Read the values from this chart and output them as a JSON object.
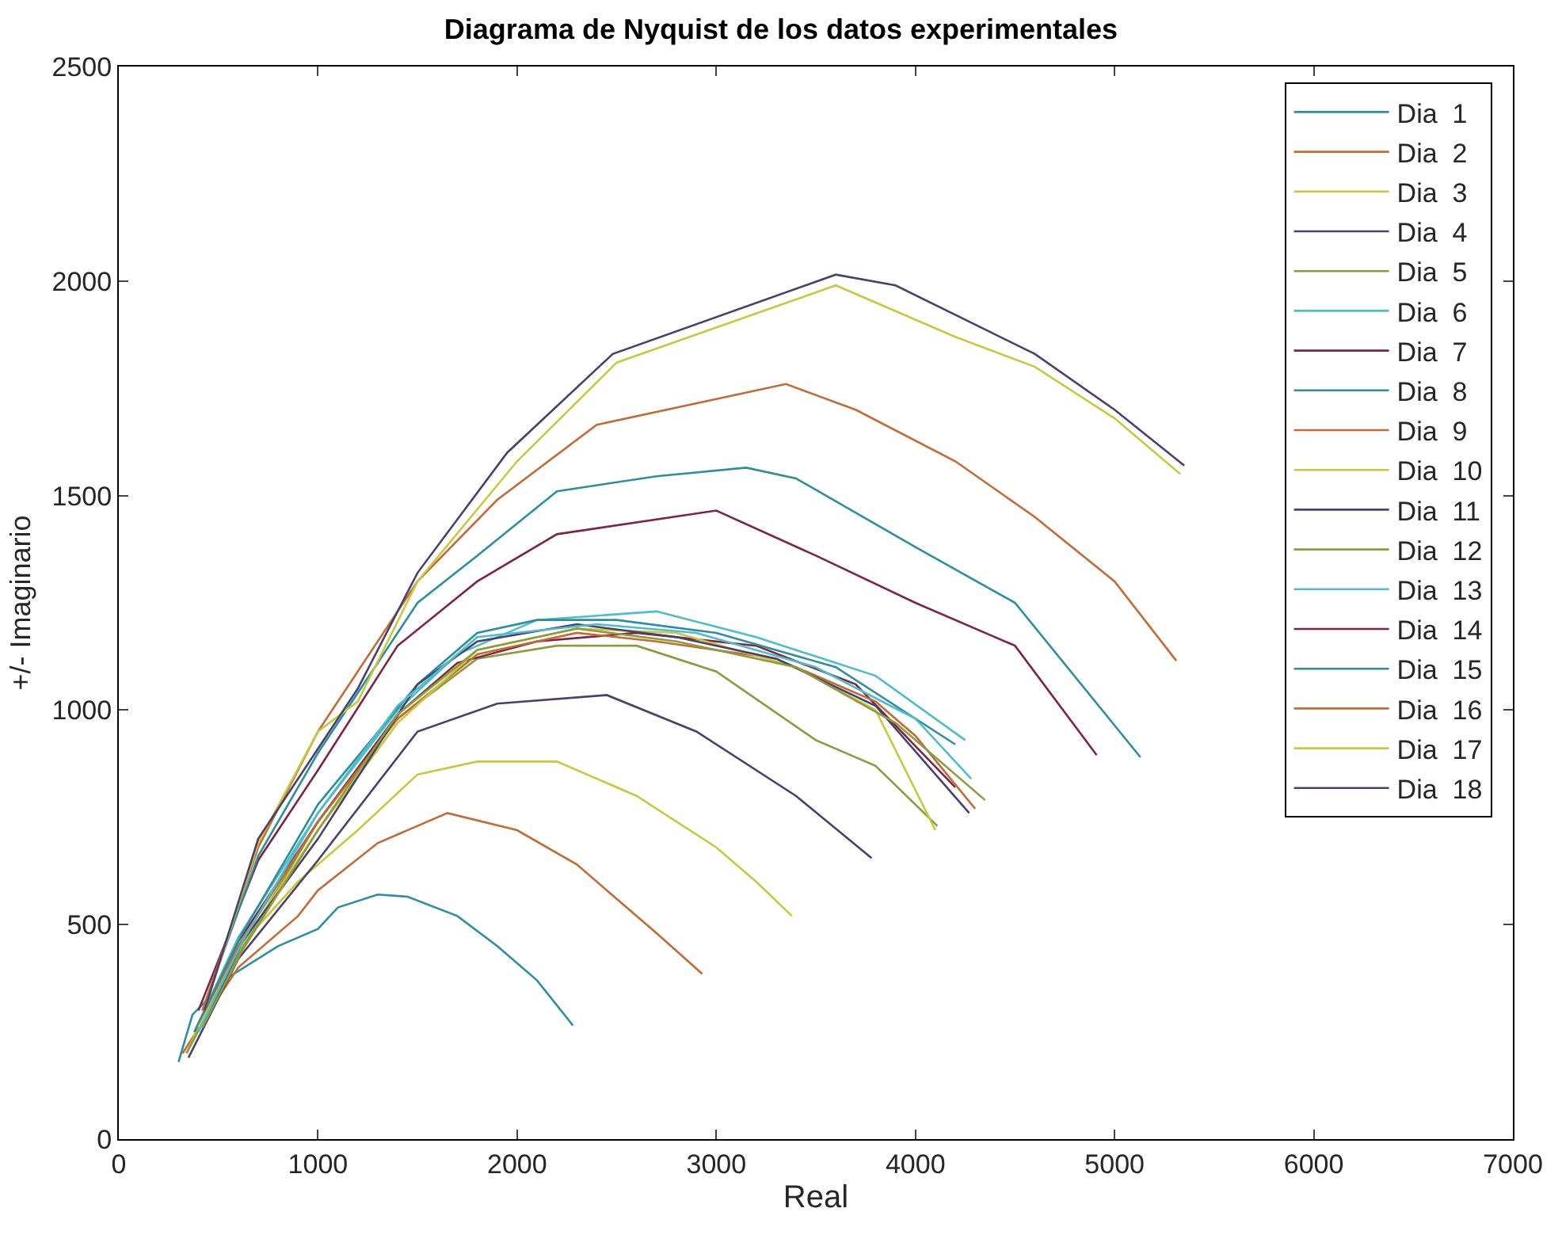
{
  "chart_data": {
    "type": "line",
    "title": "Diagrama de Nyquist de los datos experimentales",
    "xlabel": "Real",
    "ylabel": "+/- Imaginario",
    "xlim": [
      0,
      7000
    ],
    "xticks": [
      0,
      1000,
      2000,
      3000,
      4000,
      5000,
      6000,
      7000
    ],
    "ylim": [
      0,
      2500
    ],
    "yticks": [
      0,
      500,
      1000,
      1500,
      2000,
      2500
    ],
    "grid": false,
    "legend": "top right",
    "marker": "none",
    "line_style": "solid",
    "series": [
      {
        "name": "Dia  1",
        "color": "#2c8fa0",
        "x": [
          300,
          370,
          560,
          800,
          1000,
          1100,
          1300,
          1450,
          1700,
          1900,
          2100,
          2280
        ],
        "values": [
          180,
          290,
          380,
          450,
          490,
          540,
          570,
          565,
          520,
          450,
          370,
          265
        ]
      },
      {
        "name": "Dia  2",
        "color": "#c46a35",
        "x": [
          320,
          500,
          600,
          900,
          1000,
          1300,
          1650,
          2000,
          2300,
          2500,
          2700,
          2930
        ],
        "values": [
          200,
          330,
          400,
          520,
          580,
          690,
          760,
          720,
          640,
          560,
          480,
          385
        ]
      },
      {
        "name": "Dia  3",
        "color": "#c9c83c",
        "x": [
          340,
          550,
          900,
          1200,
          1500,
          1800,
          2200,
          2600,
          3000,
          3200,
          3380
        ],
        "values": [
          200,
          420,
          600,
          720,
          850,
          880,
          880,
          800,
          680,
          600,
          520
        ]
      },
      {
        "name": "Dia  4",
        "color": "#4b3f70",
        "x": [
          350,
          600,
          1000,
          1500,
          1900,
          2450,
          2900,
          3400,
          3780
        ],
        "values": [
          190,
          420,
          650,
          950,
          1015,
          1035,
          950,
          800,
          655
        ]
      },
      {
        "name": "Dia  5",
        "color": "#8b9c3b",
        "x": [
          340,
          600,
          1000,
          1400,
          1800,
          2200,
          2600,
          3000,
          3500,
          3800,
          4110
        ],
        "values": [
          200,
          430,
          740,
          980,
          1120,
          1150,
          1150,
          1090,
          930,
          870,
          730
        ]
      },
      {
        "name": "Dia  6",
        "color": "#4dbccc",
        "x": [
          380,
          600,
          1000,
          1400,
          1700,
          2100,
          2700,
          3200,
          3800,
          4250
        ],
        "values": [
          250,
          470,
          760,
          1000,
          1130,
          1210,
          1230,
          1170,
          1080,
          930
        ]
      },
      {
        "name": "Dia  7",
        "color": "#7e2545",
        "x": [
          380,
          600,
          1000,
          1400,
          1700,
          2100,
          2600,
          3200,
          3700,
          4200
        ],
        "values": [
          250,
          460,
          740,
          990,
          1110,
          1160,
          1180,
          1150,
          1060,
          820
        ]
      },
      {
        "name": "Dia  8",
        "color": "#2c8fa0",
        "x": [
          380,
          620,
          1000,
          1500,
          1800,
          2100,
          2500,
          3000,
          3600,
          4200
        ],
        "values": [
          250,
          480,
          780,
          1060,
          1180,
          1210,
          1210,
          1180,
          1100,
          920
        ]
      },
      {
        "name": "Dia  9",
        "color": "#c46a35",
        "x": [
          400,
          600,
          1000,
          1400,
          1800,
          2300,
          2700,
          3300,
          3800,
          4000,
          4300
        ],
        "values": [
          260,
          450,
          740,
          980,
          1130,
          1180,
          1160,
          1120,
          1020,
          940,
          770
        ]
      },
      {
        "name": "Dia  10",
        "color": "#c9c83c",
        "x": [
          400,
          600,
          1000,
          1400,
          1800,
          2300,
          2800,
          3400,
          3800,
          4100
        ],
        "values": [
          260,
          440,
          720,
          970,
          1140,
          1190,
          1180,
          1100,
          1000,
          720
        ]
      },
      {
        "name": "Dia  11",
        "color": "#4b3f70",
        "x": [
          420,
          620,
          1000,
          1500,
          1800,
          2300,
          2800,
          3300,
          3800,
          4270
        ],
        "values": [
          260,
          460,
          700,
          1060,
          1160,
          1200,
          1170,
          1120,
          1010,
          760
        ]
      },
      {
        "name": "Dia  12",
        "color": "#8b9c3b",
        "x": [
          420,
          620,
          1000,
          1400,
          1800,
          2300,
          2800,
          3400,
          3900,
          4350
        ],
        "values": [
          260,
          440,
          720,
          990,
          1140,
          1190,
          1160,
          1100,
          970,
          790
        ]
      },
      {
        "name": "Dia  13",
        "color": "#4dbccc",
        "x": [
          400,
          620,
          1000,
          1400,
          1800,
          2400,
          2900,
          3500,
          4000,
          4280
        ],
        "values": [
          250,
          460,
          760,
          1010,
          1170,
          1200,
          1180,
          1100,
          980,
          840
        ]
      },
      {
        "name": "Dia  14",
        "color": "#7e2545",
        "x": [
          400,
          700,
          1000,
          1400,
          1800,
          2200,
          3000,
          3500,
          4000,
          4500,
          4910
        ],
        "values": [
          300,
          650,
          860,
          1150,
          1300,
          1410,
          1465,
          1360,
          1250,
          1150,
          895
        ]
      },
      {
        "name": "Dia  15",
        "color": "#2c8fa0",
        "x": [
          420,
          700,
          1000,
          1500,
          1800,
          2200,
          2700,
          3150,
          3400,
          4000,
          4500,
          5130
        ],
        "values": [
          300,
          660,
          900,
          1250,
          1360,
          1510,
          1545,
          1565,
          1540,
          1380,
          1250,
          890
        ]
      },
      {
        "name": "Dia  16",
        "color": "#c46a35",
        "x": [
          420,
          700,
          1000,
          1500,
          1900,
          2400,
          3350,
          3700,
          4200,
          4600,
          5000,
          5310
        ],
        "values": [
          300,
          680,
          950,
          1300,
          1490,
          1665,
          1760,
          1700,
          1580,
          1450,
          1300,
          1115
        ]
      },
      {
        "name": "Dia  17",
        "color": "#c9c83c",
        "x": [
          430,
          700,
          1000,
          1200,
          1500,
          2000,
          2500,
          3600,
          4200,
          4600,
          5000,
          5330
        ],
        "values": [
          300,
          690,
          950,
          1020,
          1300,
          1580,
          1810,
          1990,
          1870,
          1800,
          1680,
          1550
        ]
      },
      {
        "name": "Dia  18",
        "color": "#4b3f70",
        "x": [
          430,
          700,
          1100,
          1200,
          1500,
          1950,
          2480,
          3600,
          3900,
          4600,
          5000,
          5350
        ],
        "values": [
          300,
          700,
          980,
          1050,
          1320,
          1600,
          1830,
          2015,
          1990,
          1830,
          1700,
          1570
        ]
      }
    ]
  }
}
